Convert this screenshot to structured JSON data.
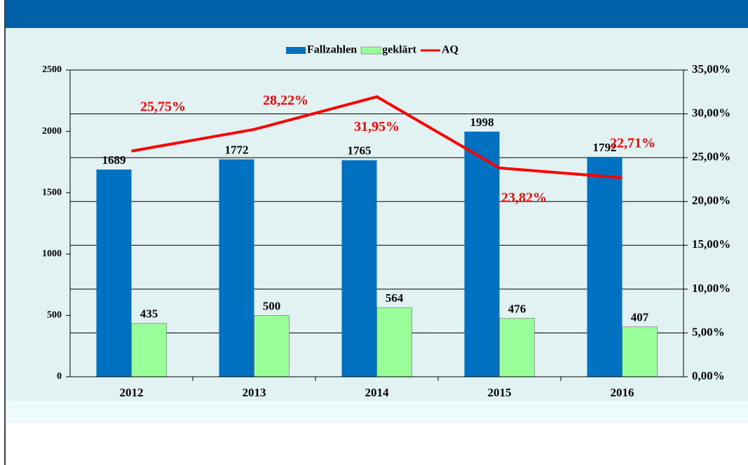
{
  "chart_data": {
    "type": "bar-line",
    "categories": [
      "2012",
      "2013",
      "2014",
      "2015",
      "2016"
    ],
    "series": [
      {
        "name": "Fallzahlen",
        "color": "#0070c0",
        "values": [
          1689,
          1772,
          1765,
          1998,
          1792
        ]
      },
      {
        "name": "geklärt",
        "color": "#99ff99",
        "values": [
          435,
          500,
          564,
          476,
          407
        ]
      },
      {
        "name": "AQ",
        "color": "#ff0000",
        "axis": "y2",
        "values": [
          25.75,
          28.22,
          31.95,
          23.82,
          22.71
        ],
        "value_labels": [
          "25,75%",
          "28,22%",
          "31,95%",
          "23,82%",
          "22,71%"
        ]
      }
    ],
    "ylim": [
      0,
      2500
    ],
    "yticks": [
      0,
      500,
      1000,
      1500,
      2000,
      2500
    ],
    "y2lim": [
      0,
      35
    ],
    "y2ticks": [
      {
        "value": 0,
        "label": "0,00%"
      },
      {
        "value": 5,
        "label": "5,00%"
      },
      {
        "value": 10,
        "label": "10,00%"
      },
      {
        "value": 15,
        "label": "15,00%"
      },
      {
        "value": 20,
        "label": "20,00%"
      },
      {
        "value": 25,
        "label": "25,00%"
      },
      {
        "value": 30,
        "label": "30,00%"
      },
      {
        "value": 35,
        "label": "35,00%"
      }
    ],
    "grid": "y2",
    "legend": "top"
  }
}
